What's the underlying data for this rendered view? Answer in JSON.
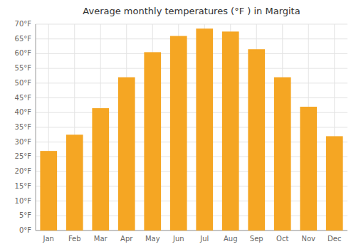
{
  "chart_data": {
    "type": "bar",
    "title": "Average monthly temperatures (°F ) in Margita",
    "categories": [
      "Jan",
      "Feb",
      "Mar",
      "Apr",
      "May",
      "Jun",
      "Jul",
      "Aug",
      "Sep",
      "Oct",
      "Nov",
      "Dec"
    ],
    "values": [
      27,
      32.5,
      41.5,
      52,
      60.5,
      66,
      68.5,
      67.5,
      61.5,
      52,
      42,
      32
    ],
    "color": "#F5A623",
    "ylim": [
      0,
      70
    ],
    "yticks": [
      {
        "value": 0,
        "label": "0°F"
      },
      {
        "value": 5,
        "label": "5°F"
      },
      {
        "value": 10,
        "label": "10°F"
      },
      {
        "value": 15,
        "label": "15°F"
      },
      {
        "value": 20,
        "label": "20°F"
      },
      {
        "value": 25,
        "label": "25°F"
      },
      {
        "value": 30,
        "label": "30°F"
      },
      {
        "value": 35,
        "label": "35°F"
      },
      {
        "value": 40,
        "label": "40°F"
      },
      {
        "value": 45,
        "label": "45°F"
      },
      {
        "value": 50,
        "label": "50°F"
      },
      {
        "value": 55,
        "label": "55°F"
      },
      {
        "value": 60,
        "label": "60°F"
      },
      {
        "value": 65,
        "label": "65°F"
      },
      {
        "value": 70,
        "label": "70°F"
      }
    ],
    "grid": true
  }
}
